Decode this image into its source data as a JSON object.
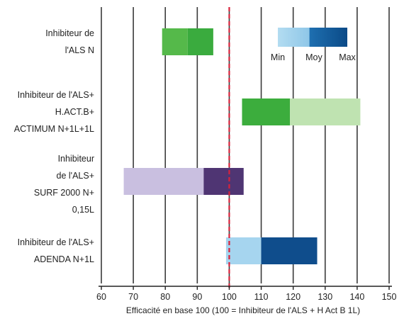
{
  "chart_data": {
    "type": "bar",
    "subtype": "floating-range",
    "title": "",
    "xlabel": "Efficacité en base 100 (100 = Inhibiteur de l'ALS + H Act B 1L)",
    "ylabel": "",
    "xlim": [
      60,
      150
    ],
    "x_ticks": [
      60,
      70,
      80,
      90,
      100,
      110,
      120,
      130,
      140,
      150
    ],
    "grid": "vertical",
    "reference_line": {
      "value": 100,
      "color": "#d9213a",
      "style": "dashed"
    },
    "legend": {
      "placement": "top-right",
      "entries": [
        "Min",
        "Moy",
        "Max"
      ],
      "colors": [
        "#b3dcf1",
        "#1e6fb0",
        "#0b4a87"
      ]
    },
    "categories": [
      {
        "lines": [
          "Inhibiteur de",
          "l'ALS N"
        ]
      },
      {
        "lines": [
          "Inhibiteur de l'ALS+",
          "H.ACT.B+",
          "ACTIMUM N+1L+1L"
        ]
      },
      {
        "lines": [
          "Inhibiteur",
          "de l'ALS+",
          "SURF 2000 N+",
          "0,15L"
        ]
      },
      {
        "lines": [
          "Inhibiteur de l'ALS+",
          "ADENDA N+1L"
        ]
      }
    ],
    "series": [
      {
        "min": 79,
        "moy": 87,
        "max": 95,
        "colors": {
          "low": "#55b94a",
          "high": "#3aab3e"
        }
      },
      {
        "min": 104,
        "moy": 119,
        "max": 141,
        "colors": {
          "low": "#3cad3d",
          "high": "#bfe3b1"
        }
      },
      {
        "min": 67,
        "moy": 92,
        "max": 104.5,
        "colors": {
          "low": "#c9bfe0",
          "high": "#4f3573"
        }
      },
      {
        "min": 99,
        "moy": 110,
        "max": 127.5,
        "colors": {
          "low": "#a6d5ef",
          "high": "#0f4d8c"
        }
      }
    ],
    "colors": {
      "grid": "#3a3a3a",
      "axis": "#222222",
      "text": "#222222"
    }
  }
}
